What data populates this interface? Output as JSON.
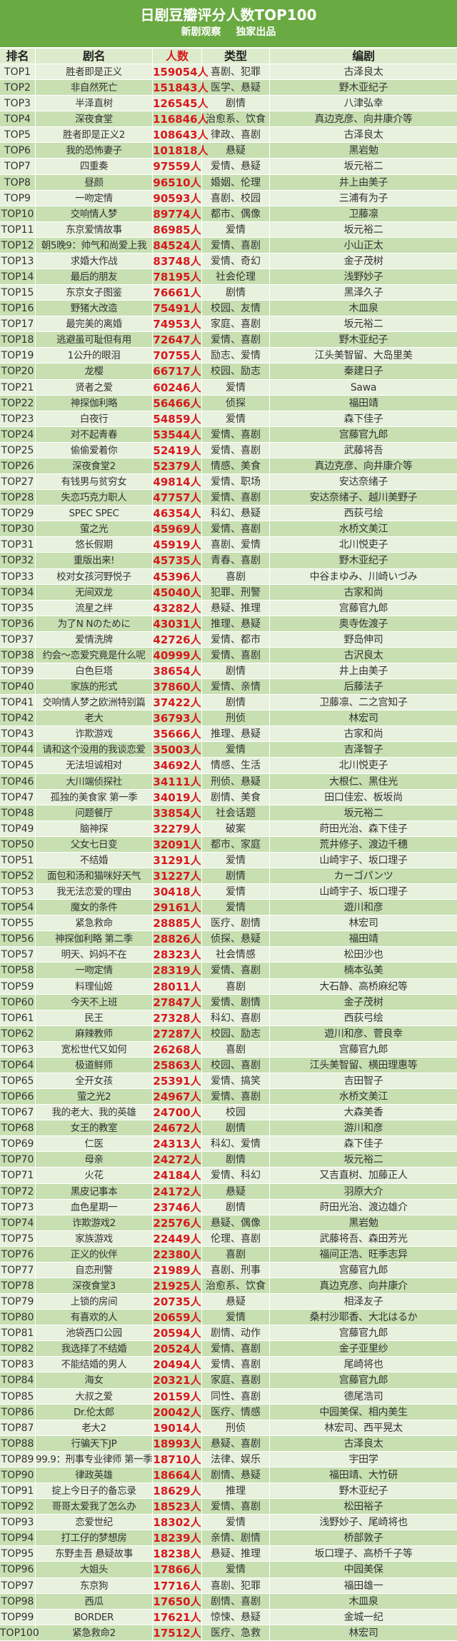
{
  "title": "日剧豆瓣评分人数TOP100",
  "subtitle": [
    "新剧观察",
    "独家出品"
  ],
  "columns": [
    "排名",
    "剧名",
    "人数",
    "类型",
    "编剧"
  ],
  "colors": {
    "header": "#6aaa42",
    "count": "#d8181c",
    "row_light": "#e8f1de",
    "row_dark": "#c7dfb1"
  },
  "rows": [
    [
      "TOP1",
      "胜者即是正义",
      "159054人",
      "喜剧、犯罪",
      "古泽良太"
    ],
    [
      "TOP2",
      "非自然死亡",
      "151843人",
      "医学、悬疑",
      "野木亚纪子"
    ],
    [
      "TOP3",
      "半泽直树",
      "126545人",
      "剧情",
      "八津弘幸"
    ],
    [
      "TOP4",
      "深夜食堂",
      "116846人",
      "治愈系、饮食",
      "真边克彦、向井康介等"
    ],
    [
      "TOP5",
      "胜者即是正义2",
      "108643人",
      "律政、喜剧",
      "古泽良太"
    ],
    [
      "TOP6",
      "我的恐怖妻子",
      "101818人",
      "悬疑",
      "黑岩勉"
    ],
    [
      "TOP7",
      "四重奏",
      "97559人",
      "爱情、悬疑",
      "坂元裕二"
    ],
    [
      "TOP8",
      "昼颜",
      "96510人",
      "婚姻、伦理",
      "井上由美子"
    ],
    [
      "TOP9",
      "一吻定情",
      "90593人",
      "喜剧、校园",
      "三浦有为子"
    ],
    [
      "TOP10",
      "交响情人梦",
      "89774人",
      "都市、偶像",
      "卫藤凛"
    ],
    [
      "TOP11",
      "东京爱情故事",
      "86985人",
      "爱情",
      "坂元裕二"
    ],
    [
      "TOP12",
      "朝5晚9：帅气和尚爱上我",
      "84524人",
      "爱情、喜剧",
      "小山正太"
    ],
    [
      "TOP13",
      "求婚大作战",
      "83748人",
      "爱情、奇幻",
      "金子茂树"
    ],
    [
      "TOP14",
      "最后的朋友",
      "78195人",
      "社会伦理",
      "浅野妙子"
    ],
    [
      "TOP15",
      "东京女子图鉴",
      "76661人",
      "剧情",
      "黑泽久子"
    ],
    [
      "TOP16",
      "野猪大改造",
      "75491人",
      "校园、友情",
      "木皿泉"
    ],
    [
      "TOP17",
      "最完美的离婚",
      "74953人",
      "家庭、喜剧",
      "坂元裕二"
    ],
    [
      "TOP18",
      "逃避虽可耻但有用",
      "72647人",
      "爱情、喜剧",
      "野木亚纪子"
    ],
    [
      "TOP19",
      "1公升的眼泪",
      "70755人",
      "励志、爱情",
      "江头美智留、大岛里美"
    ],
    [
      "TOP20",
      "龙樱",
      "66717人",
      "校园、励志",
      "秦建日子"
    ],
    [
      "TOP21",
      "贤者之爱",
      "60246人",
      "爱情",
      "Sawa"
    ],
    [
      "TOP22",
      "神探伽利略",
      "56466人",
      "侦探",
      "福田靖"
    ],
    [
      "TOP23",
      "白夜行",
      "54859人",
      "爱情",
      "森下佳子"
    ],
    [
      "TOP24",
      "对不起青春",
      "53544人",
      "爱情、喜剧",
      "宫藤官九郎"
    ],
    [
      "TOP25",
      "偷偷爱着你",
      "52419人",
      "爱情、喜剧",
      "武藤将吾"
    ],
    [
      "TOP26",
      "深夜食堂2",
      "52379人",
      "情感、美食",
      "真边克彦、向井康介等"
    ],
    [
      "TOP27",
      "有钱男与贫穷女",
      "49814人",
      "爱情、职场",
      "安达奈绪子"
    ],
    [
      "TOP28",
      "失恋巧克力职人",
      "47757人",
      "爱情、喜剧",
      "安达奈绪子、越川美野子"
    ],
    [
      "TOP29",
      "SPEC SPEC",
      "46354人",
      "科幻、悬疑",
      "西荻弓绘"
    ],
    [
      "TOP30",
      "萤之光",
      "45969人",
      "爱情、喜剧",
      "水桥文美江"
    ],
    [
      "TOP31",
      "悠长假期",
      "45919人",
      "喜剧、爱情",
      "北川悦吏子"
    ],
    [
      "TOP32",
      "重版出来!",
      "45735人",
      "青春、喜剧",
      "野木亚纪子"
    ],
    [
      "TOP33",
      "校对女孩河野悦子",
      "45396人",
      "喜剧",
      "中谷まゆみ、川崎いづみ"
    ],
    [
      "TOP34",
      "无间双龙",
      "45040人",
      "犯罪、刑警",
      "古家和尚"
    ],
    [
      "TOP35",
      "流星之绊",
      "43282人",
      "悬疑、推理",
      "宫藤官九郎"
    ],
    [
      "TOP36",
      "为了N Nのために",
      "43031人",
      "推理、悬疑",
      "奥寺佐渡子"
    ],
    [
      "TOP37",
      "爱情洗牌",
      "42726人",
      "爱情、都市",
      "野岛伸司"
    ],
    [
      "TOP38",
      "约会～恋爱究竟是什么呢",
      "40999人",
      "爱情、喜剧",
      "古沢良太"
    ],
    [
      "TOP39",
      "白色巨塔",
      "38654人",
      "剧情",
      "井上由美子"
    ],
    [
      "TOP40",
      "家族的形式",
      "37860人",
      "爱情、亲情",
      "后藤法子"
    ],
    [
      "TOP41",
      "交响情人梦之欧洲特别篇",
      "37422人",
      "剧情",
      "卫藤凛、二之宫知子"
    ],
    [
      "TOP42",
      "老大",
      "36793人",
      "刑侦",
      "林宏司"
    ],
    [
      "TOP43",
      "诈欺游戏",
      "35666人",
      "推理、悬疑",
      "古家和尚"
    ],
    [
      "TOP44",
      "请和这个没用的我谈恋爱",
      "35003人",
      "爱情",
      "吉泽智子"
    ],
    [
      "TOP45",
      "无法坦诚相对",
      "34692人",
      "情感、生活",
      "北川悦吏子"
    ],
    [
      "TOP46",
      "大川端侦探社",
      "34111人",
      "刑侦、悬疑",
      "大根仁、黑住光"
    ],
    [
      "TOP47",
      "孤独的美食家 第一季",
      "34019人",
      "剧情、美食",
      "田口佳宏、板坂尚"
    ],
    [
      "TOP48",
      "问题餐厅",
      "33854人",
      "社会话题",
      "坂元裕二"
    ],
    [
      "TOP49",
      "脑神探",
      "32279人",
      "破案",
      "莳田光治、森下佳子"
    ],
    [
      "TOP50",
      "父女七日变",
      "32091人",
      "都市、家庭",
      "荒井修子、渡边千穗"
    ],
    [
      "TOP51",
      "不结婚",
      "31291人",
      "爱情",
      "山崎宇子、坂口理子"
    ],
    [
      "TOP52",
      "面包和汤和猫咪好天气",
      "31227人",
      "剧情",
      "カーゴパンツ"
    ],
    [
      "TOP53",
      "我无法恋爱的理由",
      "30418人",
      "爱情",
      "山崎宇子、坂口理子"
    ],
    [
      "TOP54",
      "魔女的条件",
      "29161人",
      "爱情",
      "遊川和彦"
    ],
    [
      "TOP55",
      "紧急救命",
      "28885人",
      "医疗、剧情",
      "林宏司"
    ],
    [
      "TOP56",
      "神探伽利略 第二季",
      "28826人",
      "侦探、悬疑",
      "福田靖"
    ],
    [
      "TOP57",
      "明天、妈妈不在",
      "28323人",
      "社会情感",
      "松田沙也"
    ],
    [
      "TOP58",
      "一吻定情",
      "28319人",
      "爱情、喜剧",
      "楠本弘美"
    ],
    [
      "TOP59",
      "料理仙姬",
      "28011人",
      "喜剧",
      "大石静、高桥麻纪等"
    ],
    [
      "TOP60",
      "今天不上班",
      "27847人",
      "爱情、剧情",
      "金子茂树"
    ],
    [
      "TOP61",
      "民王",
      "27328人",
      "科幻、喜剧",
      "西荻弓绘"
    ],
    [
      "TOP62",
      "麻辣教师",
      "27287人",
      "校园、励志",
      "遊川和彦、菅良幸"
    ],
    [
      "TOP63",
      "宽松世代又如何",
      "26268人",
      "喜剧",
      "宫藤官九郎"
    ],
    [
      "TOP64",
      "极道鲜师",
      "25863人",
      "校园、喜剧",
      "江头美智留、横田理惠等"
    ],
    [
      "TOP65",
      "全开女孩",
      "25391人",
      "爱情、搞笑",
      "吉田智子"
    ],
    [
      "TOP66",
      "萤之光2",
      "24967人",
      "爱情、喜剧",
      "水桥文美江"
    ],
    [
      "TOP67",
      "我的老大、我的英雄",
      "24700人",
      "校园",
      "大森美香"
    ],
    [
      "TOP68",
      "女王的教室",
      "24672人",
      "剧情",
      "游川和彦"
    ],
    [
      "TOP69",
      "仁医",
      "24313人",
      "科幻、爱情",
      "森下佳子"
    ],
    [
      "TOP70",
      "母亲",
      "24272人",
      "剧情",
      "坂元裕二"
    ],
    [
      "TOP71",
      "火花",
      "24184人",
      "爱情、科幻",
      "又吉直树、加藤正人"
    ],
    [
      "TOP72",
      "黑皮记事本",
      "24172人",
      "悬疑",
      "羽原大介"
    ],
    [
      "TOP73",
      "血色星期一",
      "23746人",
      "剧情",
      "莳田光治、渡边雄介"
    ],
    [
      "TOP74",
      "诈欺游戏2",
      "22576人",
      "悬疑、偶像",
      "黑岩勉"
    ],
    [
      "TOP75",
      "家族游戏",
      "22449人",
      "伦理、喜剧",
      "武藤将吾、森田芳光"
    ],
    [
      "TOP76",
      "正义的伙伴",
      "22380人",
      "喜剧",
      "福间正浩、旺季志异"
    ],
    [
      "TOP77",
      "自恋刑警",
      "21989人",
      "喜剧、刑事",
      "宫藤官九郎"
    ],
    [
      "TOP78",
      "深夜食堂3",
      "21925人",
      "治愈系、饮食",
      "真边克彦、向井康介"
    ],
    [
      "TOP79",
      "上锁的房间",
      "20735人",
      "悬疑",
      "相泽友子"
    ],
    [
      "TOP80",
      "有喜欢的人",
      "20659人",
      "爱情",
      "桑村沙耶香、大北はるか"
    ],
    [
      "TOP81",
      "池袋西口公园",
      "20594人",
      "剧情、动作",
      "宫藤官九郎"
    ],
    [
      "TOP82",
      "我选择了不结婚",
      "20524人",
      "爱情、喜剧",
      "金子亚里纱"
    ],
    [
      "TOP83",
      "不能结婚的男人",
      "20494人",
      "爱情、喜剧",
      "尾崎将也"
    ],
    [
      "TOP84",
      "海女",
      "20321人",
      "家庭、喜剧",
      "宫藤官九郎"
    ],
    [
      "TOP85",
      "大叔之爱",
      "20159人",
      "同性、喜剧",
      "德尾浩司"
    ],
    [
      "TOP86",
      "Dr.伦太郎",
      "20042人",
      "医疗、情感",
      "中园美保、相内美生"
    ],
    [
      "TOP87",
      "老大2",
      "19014人",
      "刑侦",
      "林宏司、西平晃太"
    ],
    [
      "TOP88",
      "行骗天下JP",
      "18993人",
      "悬疑、喜剧",
      "古泽良太"
    ],
    [
      "TOP89",
      "99.9：刑事专业律师 第一季",
      "18710人",
      "法律、娱乐",
      "宇田学"
    ],
    [
      "TOP90",
      "律政英雄",
      "18664人",
      "剧情、悬疑",
      "福田靖、大竹研"
    ],
    [
      "TOP91",
      "掟上今日子的备忘录",
      "18629人",
      "推理",
      "野木亚纪子"
    ],
    [
      "TOP92",
      "哥哥太爱我了怎么办",
      "18523人",
      "爱情、喜剧",
      "松田裕子"
    ],
    [
      "TOP93",
      "恋爱世纪",
      "18302人",
      "爱情",
      "浅野妙子、尾崎将也"
    ],
    [
      "TOP94",
      "打工仔的梦想房",
      "18239人",
      "亲情、剧情",
      "桥部敦子"
    ],
    [
      "TOP95",
      "东野圭吾 悬疑故事",
      "18238人",
      "悬疑、推理",
      "坂口理子、高桥千子等"
    ],
    [
      "TOP96",
      "大姐头",
      "17866人",
      "爱情",
      "中园美保"
    ],
    [
      "TOP97",
      "东京狗",
      "17716人",
      "喜剧、犯罪",
      "福田雄一"
    ],
    [
      "TOP98",
      "西瓜",
      "17650人",
      "剧情、喜剧",
      "木皿泉"
    ],
    [
      "TOP99",
      "BORDER",
      "17621人",
      "惊悚、悬疑",
      "金城一纪"
    ],
    [
      "TOP100",
      "紧急救命2",
      "17512人",
      "医疗、急救",
      "林宏司"
    ]
  ]
}
